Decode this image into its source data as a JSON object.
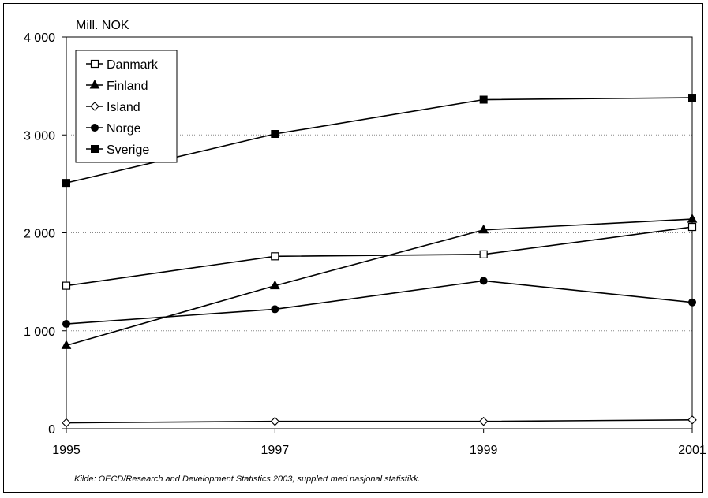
{
  "chart_data": {
    "type": "line",
    "ylabel": "Mill. NOK",
    "x": [
      "1995",
      "1997",
      "1999",
      "2001"
    ],
    "ylim": [
      0,
      4000
    ],
    "yticks": [
      0,
      1000,
      2000,
      3000,
      4000
    ],
    "ytick_labels": [
      "0",
      "1 000",
      "2 000",
      "3 000",
      "4 000"
    ],
    "grid": "horizontal-dotted",
    "legend_position": "top-left",
    "series": [
      {
        "name": "Danmark",
        "marker": "open-square",
        "values": [
          1460,
          1760,
          1780,
          2060
        ]
      },
      {
        "name": "Finland",
        "marker": "filled-triangle",
        "values": [
          850,
          1460,
          2030,
          2140
        ]
      },
      {
        "name": "Island",
        "marker": "open-diamond",
        "values": [
          60,
          75,
          75,
          90
        ]
      },
      {
        "name": "Norge",
        "marker": "filled-circle",
        "values": [
          1070,
          1220,
          1510,
          1290
        ]
      },
      {
        "name": "Sverige",
        "marker": "filled-square",
        "values": [
          2510,
          3010,
          3360,
          3380
        ]
      }
    ],
    "source": "Kilde: OECD/Research and Development Statistics 2003, supplert med nasjonal statistikk."
  }
}
